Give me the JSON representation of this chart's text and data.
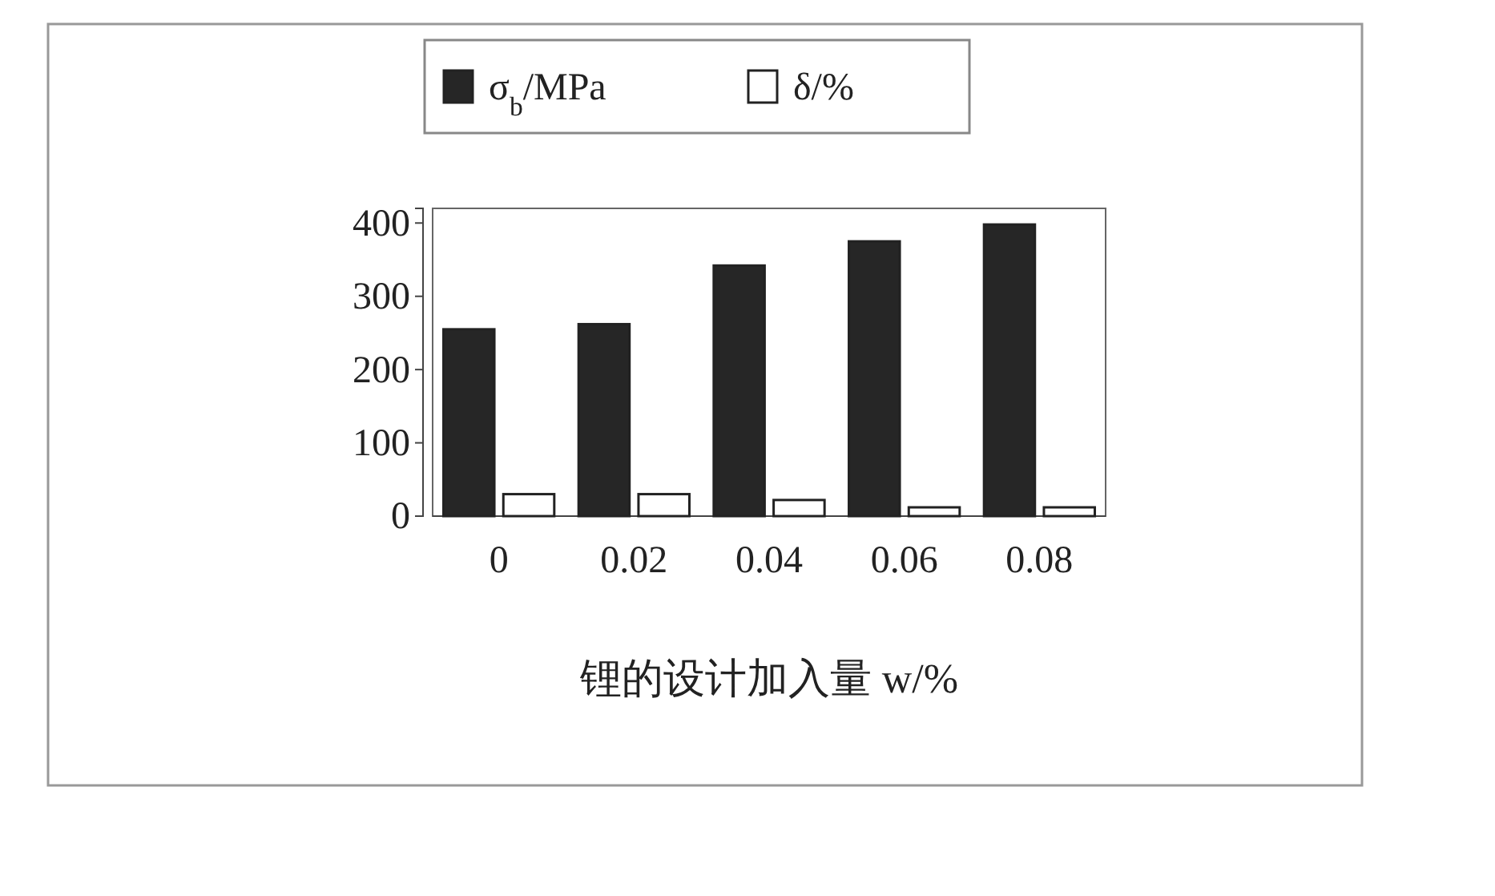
{
  "chart_data": {
    "type": "bar",
    "categories": [
      "0",
      "0.02",
      "0.04",
      "0.06",
      "0.08"
    ],
    "series": [
      {
        "name": "σ$_{b}$/MPa",
        "color": "#262626",
        "values": [
          255,
          262,
          342,
          375,
          398
        ]
      },
      {
        "name": "δ/%",
        "color": "#ffffff",
        "values": [
          30,
          30,
          22,
          12,
          12
        ]
      }
    ],
    "ylim": [
      0,
      420
    ],
    "yticks": [
      0,
      100,
      200,
      300,
      400
    ],
    "xlabel": "锂的设计加入量 w/%",
    "legend": "top"
  }
}
